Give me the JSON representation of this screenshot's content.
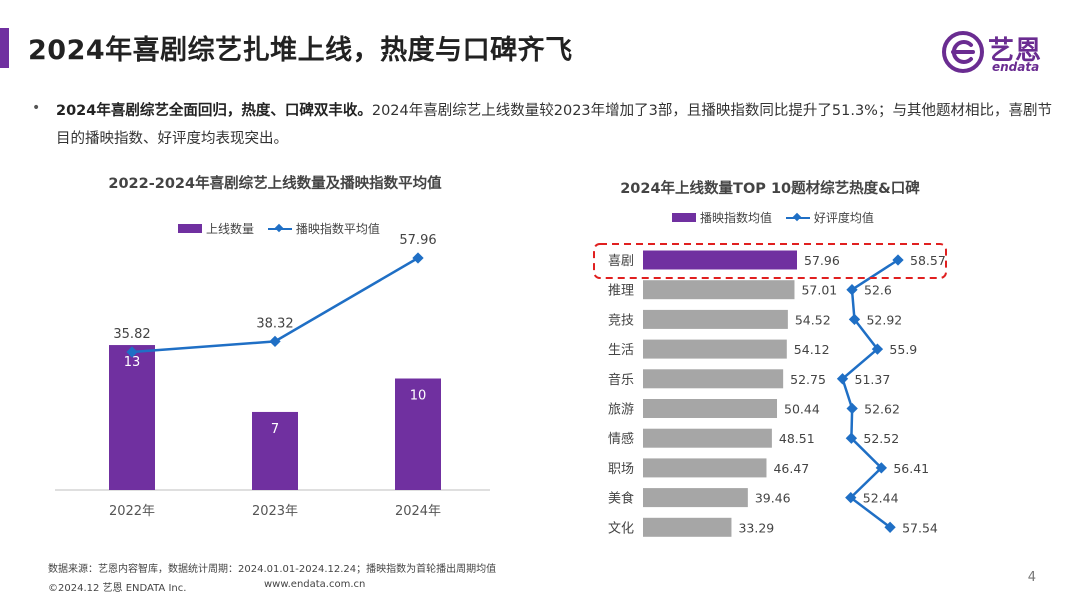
{
  "page": {
    "title": "2024年喜剧综艺扎堆上线，热度与口碑齐飞",
    "logo_name": "艺恩",
    "logo_sub": "endata",
    "bullet_symbol": "•",
    "summary_bold": "2024年喜剧综艺全面回归，热度、口碑双丰收。",
    "summary_text": "2024年喜剧综艺上线数量较2023年增加了3部，且播映指数同比提升了51.3%；与其他题材相比，喜剧节目的播映指数、好评度均表现突出。",
    "footer_source": "数据来源：艺恩内容智库，数据统计周期：2024.01.01-2024.12.24；播映指数为首轮播出周期均值",
    "footer_copyright": "©2024.12 艺恩 ENDATA Inc.",
    "footer_url": "www.endata.com.cn",
    "page_number": "4",
    "colors": {
      "accent": "#7030a0",
      "line": "#1f6fc5",
      "gray_bar": "#a6a6a6",
      "highlight": "#e02020"
    }
  },
  "chart_data": [
    {
      "type": "bar",
      "title": "2022-2024年喜剧综艺上线数量及播映指数平均值",
      "categories": [
        "2022年",
        "2023年",
        "2024年"
      ],
      "series": [
        {
          "name": "上线数量",
          "type": "bar",
          "values": [
            13,
            7,
            10
          ]
        },
        {
          "name": "播映指数平均值",
          "type": "line",
          "values": [
            35.82,
            38.32,
            57.96
          ]
        }
      ],
      "grid": false,
      "legend": "top-center"
    },
    {
      "type": "bar",
      "orientation": "horizontal",
      "title": "2024年上线数量TOP 10题材综艺热度&口碑",
      "categories": [
        "喜剧",
        "推理",
        "竞技",
        "生活",
        "音乐",
        "旅游",
        "情感",
        "职场",
        "美食",
        "文化"
      ],
      "series": [
        {
          "name": "播映指数均值",
          "type": "bar",
          "values": [
            57.96,
            57.01,
            54.52,
            54.12,
            52.75,
            50.44,
            48.51,
            46.47,
            39.46,
            33.29
          ]
        },
        {
          "name": "好评度均值",
          "type": "line",
          "values": [
            58.57,
            52.6,
            52.92,
            55.9,
            51.37,
            52.62,
            52.52,
            56.41,
            52.44,
            57.54
          ]
        }
      ],
      "highlighted_category": "喜剧",
      "grid": false,
      "legend": "top-center"
    }
  ]
}
